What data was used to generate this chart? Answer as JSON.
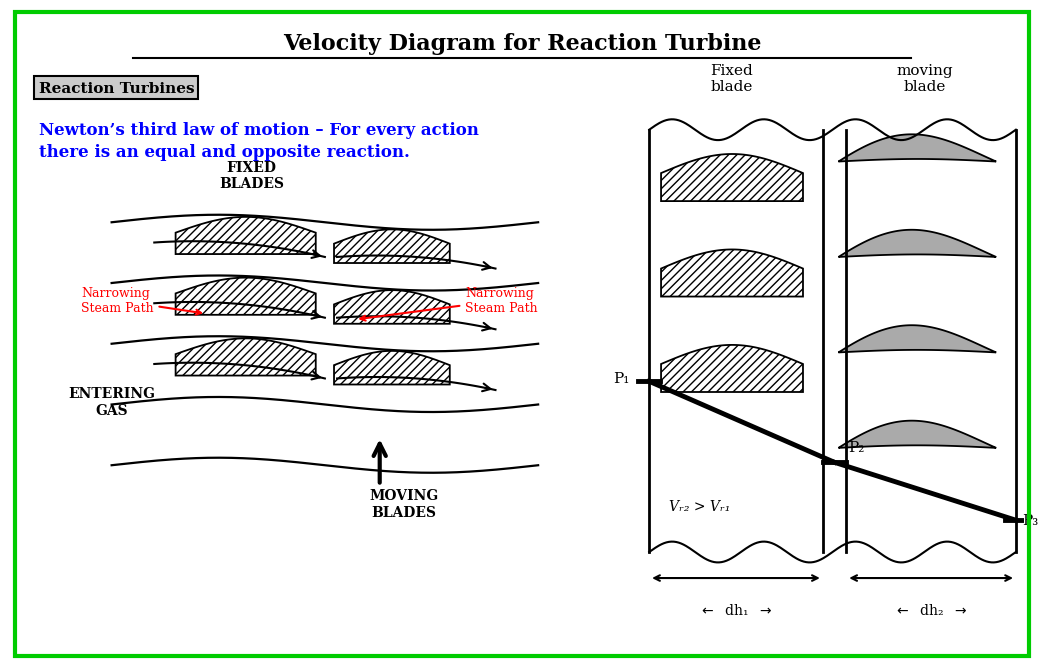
{
  "title": "Velocity Diagram for Reaction Turbine",
  "title_fontsize": 16,
  "background_color": "#ffffff",
  "border_color": "#00cc00",
  "left_panel": {
    "reaction_turbines_label": "Reaction Turbines",
    "newton_law_text": "Newton’s third law of motion – For every action\nthere is an equal and opposite reaction.",
    "fixed_blades_label": "FIXED\nBLADES",
    "moving_blades_label": "MOVING\nBLADES",
    "entering_gas_label": "ENTERING\nGAS",
    "narrowing_left_label": "Narrowing\nSteam Path",
    "narrowing_right_label": "Narrowing\nSteam Path"
  },
  "right_panel": {
    "fixed_blade_label": "Fixed\nblade",
    "moving_blade_label": "moving\nblade",
    "p1_label": "P₁",
    "p2_label": "P₂",
    "p3_label": "P₃",
    "vr_label": "Vᵣ₂ > Vᵣ₁",
    "dh1_label": "dh₁",
    "dh2_label": "dh₂"
  }
}
